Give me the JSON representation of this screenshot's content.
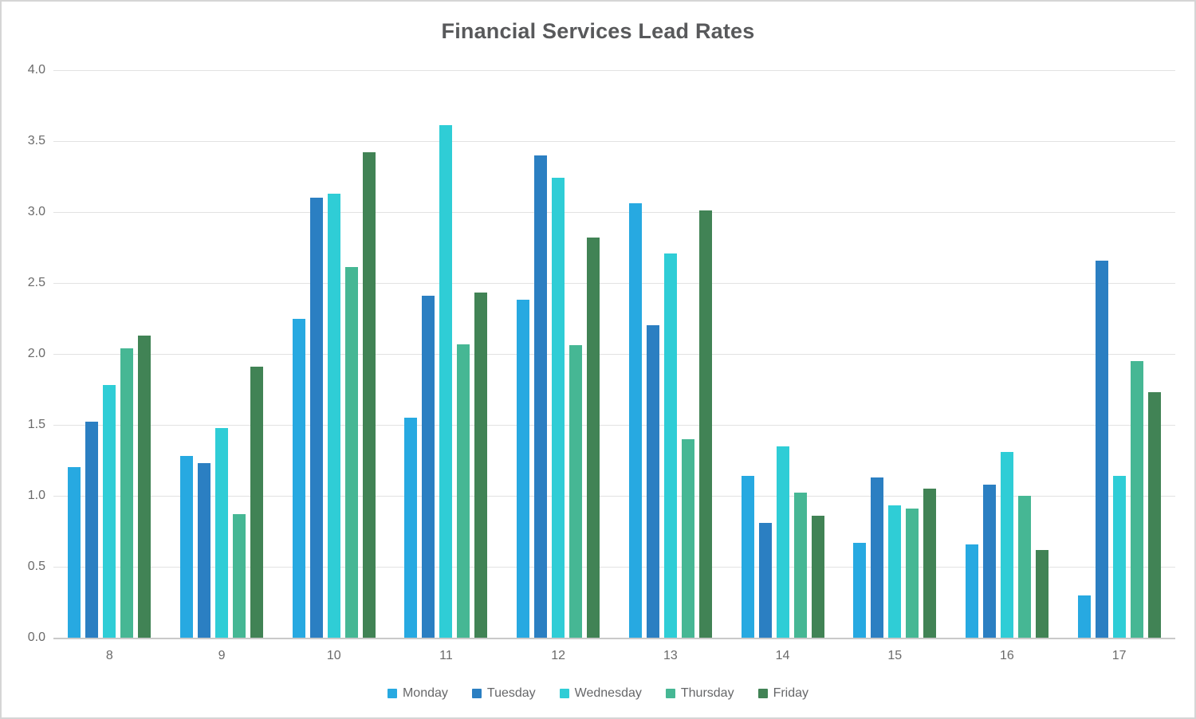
{
  "title": "Financial Services Lead Rates",
  "chart_data": {
    "type": "bar",
    "categories": [
      "8",
      "9",
      "10",
      "11",
      "12",
      "13",
      "14",
      "15",
      "16",
      "17"
    ],
    "series": [
      {
        "name": "Monday",
        "color": "#27A9E1",
        "values": [
          1.2,
          1.28,
          2.25,
          1.55,
          2.38,
          3.06,
          1.14,
          0.67,
          0.66,
          0.3
        ]
      },
      {
        "name": "Tuesday",
        "color": "#2B7FC2",
        "values": [
          1.52,
          1.23,
          3.1,
          2.41,
          3.4,
          2.2,
          0.81,
          1.13,
          1.08,
          2.66
        ]
      },
      {
        "name": "Wednesday",
        "color": "#2FCDD6",
        "values": [
          1.78,
          1.48,
          3.13,
          3.61,
          3.24,
          2.71,
          1.35,
          0.93,
          1.31,
          1.14
        ]
      },
      {
        "name": "Thursday",
        "color": "#46B794",
        "values": [
          2.04,
          0.87,
          2.61,
          2.07,
          2.06,
          1.4,
          1.02,
          0.91,
          1.0,
          1.95
        ]
      },
      {
        "name": "Friday",
        "color": "#418355",
        "values": [
          2.13,
          1.91,
          3.42,
          2.43,
          2.82,
          3.01,
          0.86,
          1.05,
          0.62,
          1.73
        ]
      }
    ],
    "title": "Financial Services Lead Rates",
    "xlabel": "",
    "ylabel": "",
    "ylim": [
      0,
      4
    ],
    "y_tick_step": 0.5,
    "y_tick_labels": [
      "4.0",
      "3.5",
      "3.0",
      "2.5",
      "2.0",
      "1.5",
      "1.0",
      "0.5",
      "0.0"
    ],
    "grid": true,
    "legend_position": "bottom"
  },
  "colors": {
    "title_text": "#58595b",
    "tick_text": "#6a6a6a",
    "legend_text": "#666769",
    "gridline": "#e2e2e2",
    "axis_line": "#c9c9c9",
    "frame_border": "#d5d5d5",
    "background": "#ffffff"
  }
}
